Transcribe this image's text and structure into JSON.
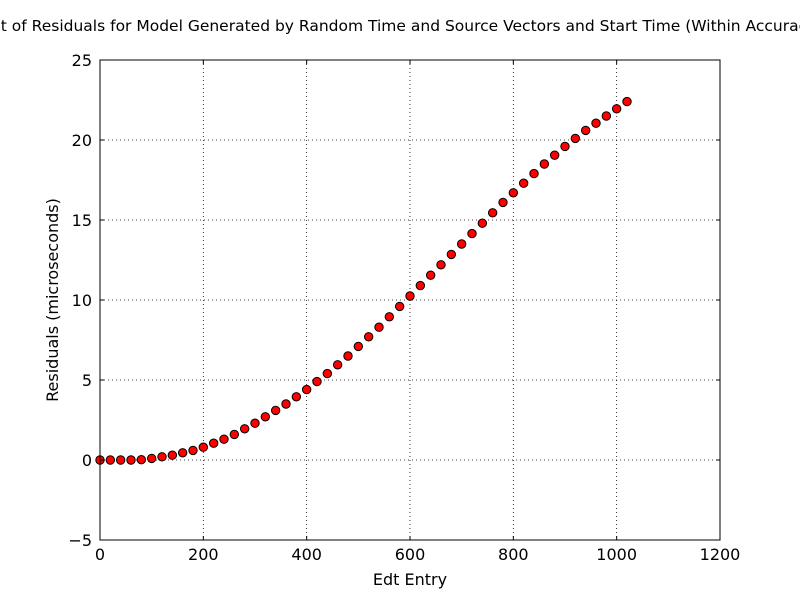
{
  "chart_data": {
    "type": "scatter",
    "title": "Plot of Residuals for Model Generated by Random Time and Source Vectors and Start Time (Within Accuracy)",
    "xlabel": "Edt Entry",
    "ylabel": "Residuals (microseconds)",
    "xlim": [
      0,
      1200
    ],
    "ylim": [
      -5,
      25
    ],
    "xticks": [
      "0",
      "200",
      "400",
      "600",
      "800",
      "1000",
      "1200"
    ],
    "yticks": [
      "−5",
      "0",
      "5",
      "10",
      "15",
      "20",
      "25"
    ],
    "grid": true,
    "marker_color": "#ff0000",
    "marker_edge_color": "#000000",
    "series": [
      {
        "x": [
          0,
          20,
          40,
          60,
          80,
          100,
          120,
          140,
          160,
          180,
          200,
          220,
          240,
          260,
          280,
          300,
          320,
          340,
          360,
          380,
          400,
          420,
          440,
          460,
          480,
          500,
          520,
          540,
          560,
          580,
          600,
          620,
          640,
          660,
          680,
          700,
          720,
          740,
          760,
          780,
          800,
          820,
          840,
          860,
          880,
          900,
          920,
          940,
          960,
          980,
          1000,
          1020
        ],
        "y": [
          0,
          0,
          0,
          0,
          0.02,
          0.1,
          0.2,
          0.3,
          0.45,
          0.6,
          0.8,
          1.05,
          1.3,
          1.6,
          1.95,
          2.3,
          2.7,
          3.1,
          3.5,
          3.95,
          4.4,
          4.9,
          5.4,
          5.95,
          6.5,
          7.1,
          7.7,
          8.3,
          8.95,
          9.6,
          10.25,
          10.9,
          11.55,
          12.2,
          12.85,
          13.5,
          14.15,
          14.8,
          15.45,
          16.1,
          16.7,
          17.3,
          17.9,
          18.5,
          19.05,
          19.6,
          20.1,
          20.6,
          21.05,
          21.5,
          21.95,
          22.4
        ]
      }
    ]
  }
}
